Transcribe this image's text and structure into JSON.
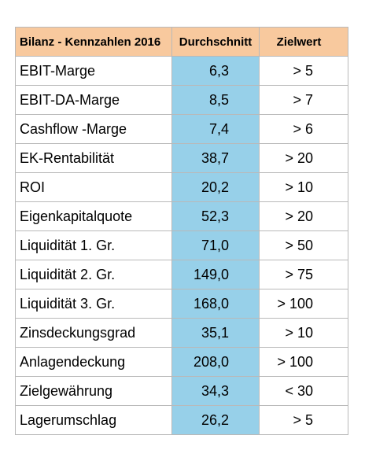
{
  "table": {
    "headers": {
      "label": "Bilanz - Kennzahlen 2016",
      "average": "Durchschnitt",
      "target": "Zielwert"
    },
    "rows": [
      {
        "label": "EBIT-Marge",
        "average": "6,3",
        "target": "> 5"
      },
      {
        "label": "EBIT-DA-Marge",
        "average": "8,5",
        "target": "> 7"
      },
      {
        "label": "Cashflow -Marge",
        "average": "7,4",
        "target": "> 6"
      },
      {
        "label": "EK-Rentabilität",
        "average": "38,7",
        "target": "> 20"
      },
      {
        "label": "ROI",
        "average": "20,2",
        "target": "> 10"
      },
      {
        "label": "Eigenkapitalquote",
        "average": "52,3",
        "target": "> 20"
      },
      {
        "label": "Liquidität 1. Gr.",
        "average": "71,0",
        "target": "> 50"
      },
      {
        "label": "Liquidität 2. Gr.",
        "average": "149,0",
        "target": "> 75"
      },
      {
        "label": "Liquidität 3. Gr.",
        "average": "168,0",
        "target": "> 100"
      },
      {
        "label": "Zinsdeckungsgrad",
        "average": "35,1",
        "target": "> 10"
      },
      {
        "label": "Anlagendeckung",
        "average": "208,0",
        "target": "> 100"
      },
      {
        "label": "Zielgewährung",
        "average": "34,3",
        "target": "< 30"
      },
      {
        "label": "Lagerumschlag",
        "average": "26,2",
        "target": "> 5"
      }
    ]
  },
  "colors": {
    "header_background": "#f8c99e",
    "average_column_background": "#97d0e9",
    "grid_lines": "#b9b9b9"
  }
}
